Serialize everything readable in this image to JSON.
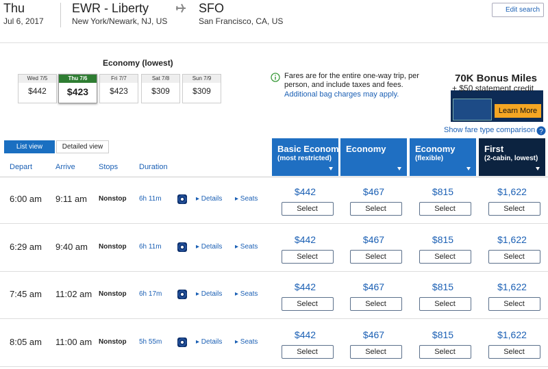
{
  "header": {
    "day": "Thu",
    "date": "Jul 6, 2017",
    "origin_code": "EWR - Liberty",
    "origin_city": "New York/Newark, NJ, US",
    "dest_code": "SFO",
    "dest_city": "San Francisco, CA, US",
    "edit": "Edit search"
  },
  "date_strip": {
    "title": "Economy (lowest)",
    "days": [
      {
        "label": "Wed 7/5",
        "price": "$442"
      },
      {
        "label": "Thu 7/6",
        "price": "$423"
      },
      {
        "label": "Fri 7/7",
        "price": "$423"
      },
      {
        "label": "Sat 7/8",
        "price": "$309"
      },
      {
        "label": "Sun 7/9",
        "price": "$309"
      }
    ]
  },
  "notice": {
    "text": "Fares are for the entire one-way trip, per person, and include taxes and fees.",
    "link": "Additional bag charges may apply."
  },
  "ad": {
    "headline": "70K Bonus Miles",
    "sub": "+ $50 statement credit",
    "button": "Learn More"
  },
  "compare_link": "Show fare type comparison",
  "views": [
    "List view",
    "Detailed view"
  ],
  "columns": [
    "Depart",
    "Arrive",
    "Stops",
    "Duration"
  ],
  "fare_columns": [
    {
      "name": "Basic Economy",
      "note": "(most restricted)"
    },
    {
      "name": "Economy"
    },
    {
      "name": "Economy",
      "note": "(flexible)"
    },
    {
      "name": "First",
      "note": "(2-cabin, lowest)"
    }
  ],
  "details_label": "Details",
  "seats_label": "Seats",
  "select_label": "Select",
  "flights": [
    {
      "depart": "6:00 am",
      "arrive": "9:11 am",
      "stops": "Nonstop",
      "duration": "6h 11m",
      "fares": [
        "$442",
        "$467",
        "$815",
        "$1,622"
      ]
    },
    {
      "depart": "6:29 am",
      "arrive": "9:40 am",
      "stops": "Nonstop",
      "duration": "6h 11m",
      "fares": [
        "$442",
        "$467",
        "$815",
        "$1,622"
      ]
    },
    {
      "depart": "7:45 am",
      "arrive": "11:02 am",
      "stops": "Nonstop",
      "duration": "6h 17m",
      "fares": [
        "$442",
        "$467",
        "$815",
        "$1,622"
      ]
    },
    {
      "depart": "8:05 am",
      "arrive": "11:00 am",
      "stops": "Nonstop",
      "duration": "5h 55m",
      "fares": [
        "$442",
        "$467",
        "$815",
        "$1,622"
      ]
    }
  ]
}
